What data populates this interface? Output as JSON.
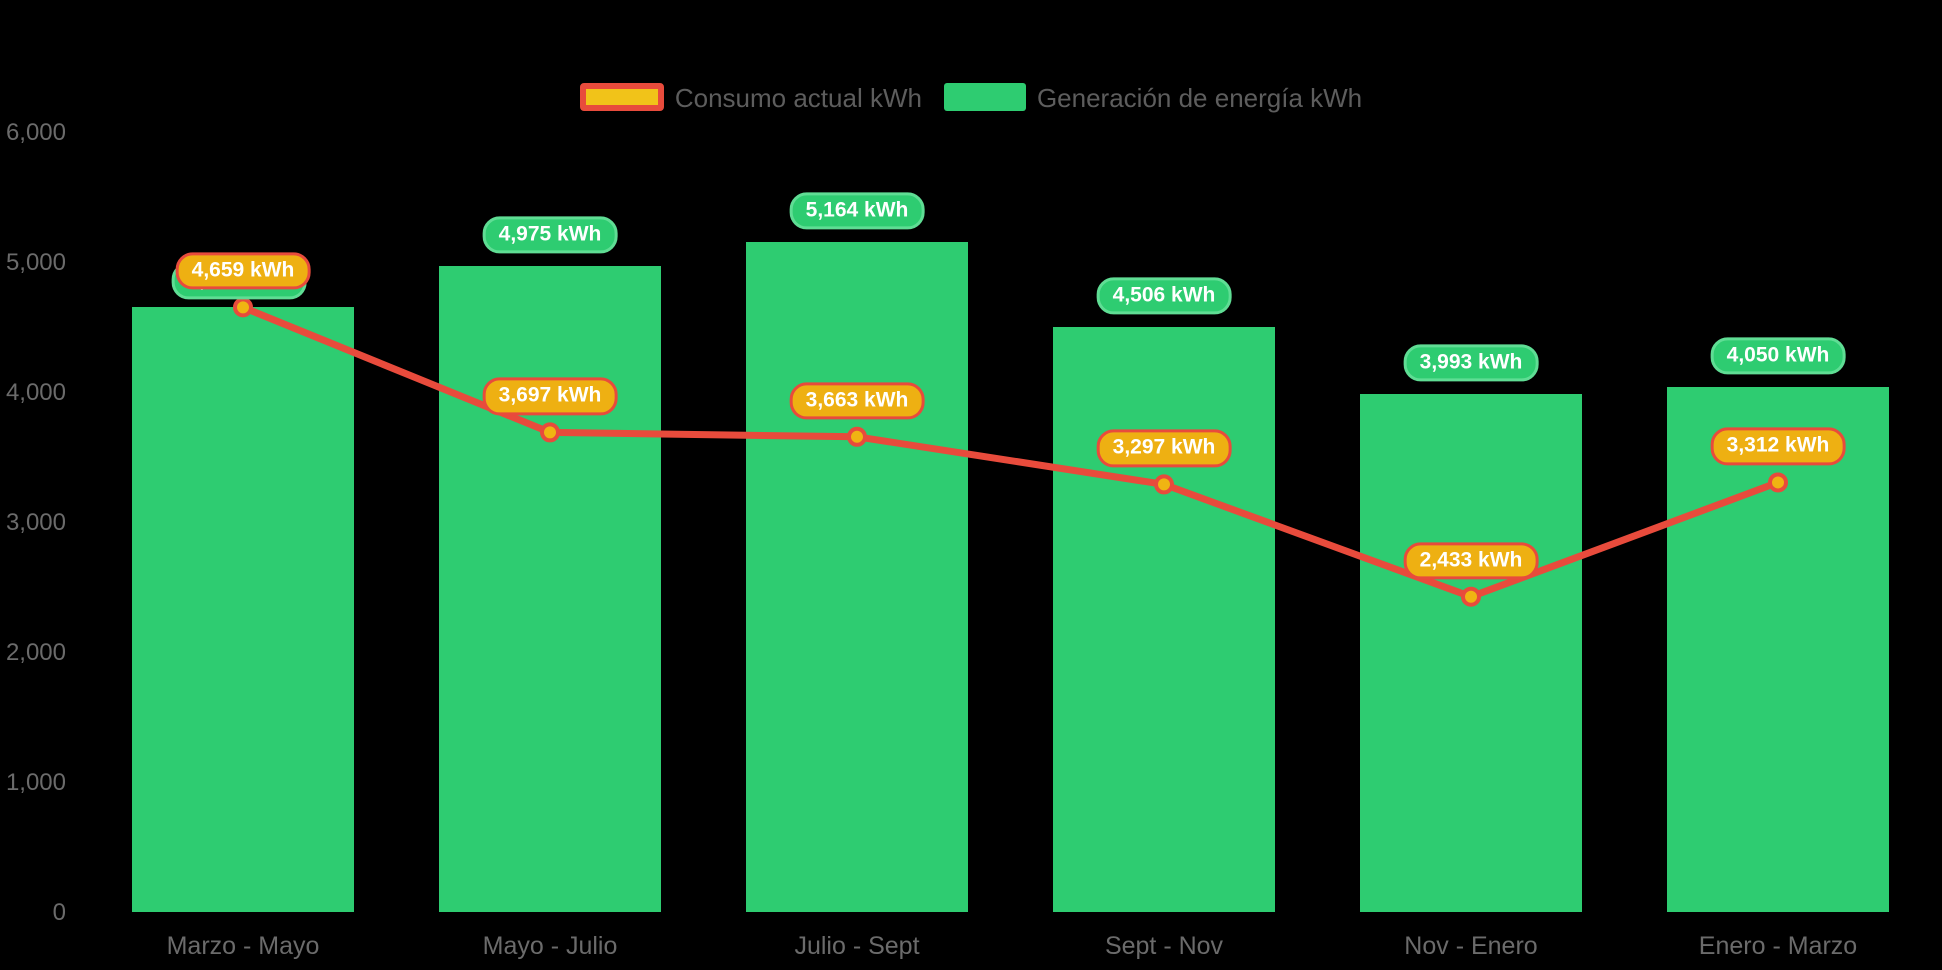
{
  "background": "#000000",
  "legend": {
    "items": [
      {
        "label": "Consumo actual kWh",
        "series": "line"
      },
      {
        "label": "Generación de energía kWh",
        "series": "bar"
      }
    ]
  },
  "chart_data": {
    "type": "bar+line",
    "title": "",
    "categories": [
      "Marzo - Mayo",
      "Mayo - Julio",
      "Julio - Sept",
      "Sept - Nov",
      "Nov - Enero",
      "Enero - Marzo"
    ],
    "series": [
      {
        "name": "Generación de energía kWh",
        "type": "bar",
        "values": [
          4659,
          4975,
          5164,
          4506,
          3993,
          4050
        ]
      },
      {
        "name": "Consumo actual kWh",
        "type": "line",
        "values": [
          4659,
          3697,
          3663,
          3297,
          2433,
          3312
        ]
      }
    ],
    "data_labels": [
      "4,659 kWh",
      "4,975 kWh",
      "5,164 kWh",
      "4,506 kWh",
      "3,993 kWh",
      "4,050 kWh",
      "4,659 kWh",
      "3,697 kWh",
      "3,663 kWh",
      "3,297 kWh",
      "2,433 kWh",
      "3,312 kWh"
    ],
    "value_suffix": " kWh",
    "xlabel": "",
    "ylabel": "",
    "y_axis": {
      "min": 0,
      "max": 6000,
      "tick_step": 1000,
      "tick_labels": [
        "0",
        "1,000",
        "2,000",
        "3,000",
        "4,000",
        "5,000",
        "6,000"
      ]
    },
    "grid": false,
    "legend_position": "top-center"
  },
  "colors": {
    "bar_green": "#2ECC71",
    "green_pill_border": "#5FDD94",
    "line_red": "#E84B3C",
    "marker_yellow": "#F0B412",
    "orange_pill_fill": "#EEB012",
    "legend_swatch_yellow": "#F1C319",
    "axis_text": "#6B6B6B",
    "legend_text": "#5D5D5D",
    "label_text": "#FFFFFF",
    "background": "#000000"
  }
}
